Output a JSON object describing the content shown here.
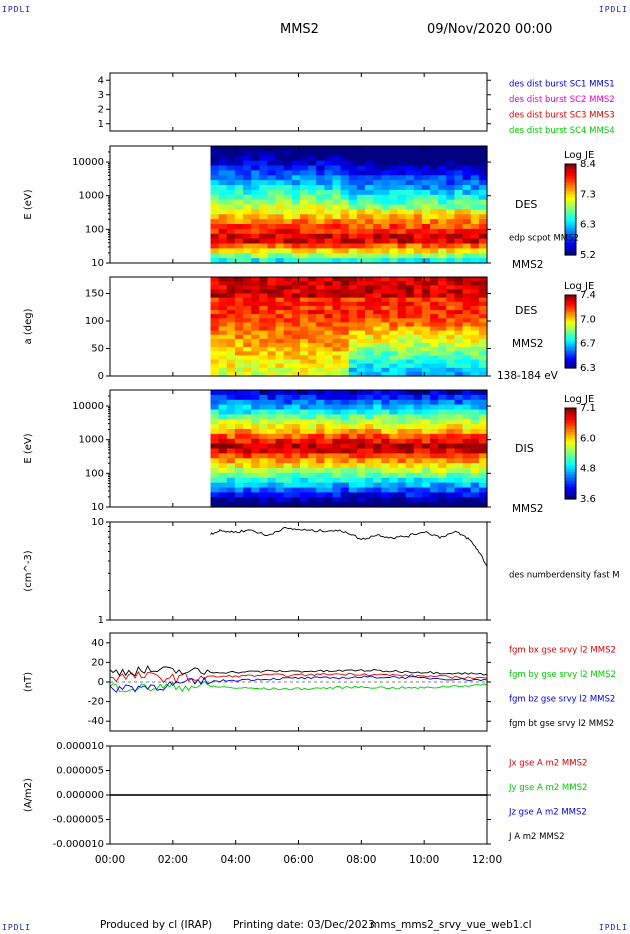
{
  "corner_tag": "IPDLI",
  "header": {
    "spacecraft": "MMS2",
    "datetime": "09/Nov/2020 00:00"
  },
  "footer": {
    "produced_by": "Produced by cl (IRAP)",
    "printing_date": "Printing date: 03/Dec/2023",
    "file_name": "mms_mms2_srvy_vue_web1.cl"
  },
  "colors": {
    "black": "#000000",
    "red": "#e00000",
    "green": "#00cc00",
    "blue": "#0000dd",
    "magenta": "#e000e0"
  },
  "chart_data": [
    {
      "id": "burst",
      "type": "line",
      "ylim": [
        0.5,
        4.5
      ],
      "yticks": [
        1,
        2,
        3,
        4
      ],
      "yscale": "linear",
      "legend": [
        {
          "label": "des dist burst SC1 MMS1",
          "color": "#0000dd"
        },
        {
          "label": "des dist burst SC2 MMS2",
          "color": "#e000e0"
        },
        {
          "label": "des dist burst SC3 MMS3",
          "color": "#e00000"
        },
        {
          "label": "des dist burst SC4 MMS4",
          "color": "#00cc00"
        }
      ]
    },
    {
      "id": "des-energy",
      "type": "heatmap",
      "ylabel": "E (eV)",
      "yscale": "log",
      "ylim": [
        10,
        30000
      ],
      "yticks": [
        10,
        100,
        1000,
        10000
      ],
      "yticklabels": [
        "10",
        "100",
        "1000",
        "10000"
      ],
      "data_start_hour": 3.2,
      "peak_energy_eV": 50,
      "labels": [
        "DES",
        "edp scpot MMS2",
        "MMS2"
      ],
      "colorbar": {
        "title": "Log JE",
        "ticks": [
          "8.4",
          "7.3",
          "6.3",
          "5.2"
        ],
        "range": [
          5.2,
          8.4
        ]
      }
    },
    {
      "id": "des-pitch",
      "type": "heatmap",
      "ylabel": "a (deg)",
      "yscale": "linear",
      "ylim": [
        0,
        180
      ],
      "yticks": [
        0,
        50,
        100,
        150
      ],
      "yticklabels": [
        "0",
        "50",
        "100",
        "150"
      ],
      "data_start_hour": 3.2,
      "labels": [
        "DES",
        "MMS2",
        "138-184 eV"
      ],
      "colorbar": {
        "title": "Log JE",
        "ticks": [
          "7.4",
          "7.0",
          "6.7",
          "6.3"
        ],
        "range": [
          6.3,
          7.4
        ]
      }
    },
    {
      "id": "dis-energy",
      "type": "heatmap",
      "ylabel": "E (eV)",
      "yscale": "log",
      "ylim": [
        10,
        30000
      ],
      "yticks": [
        10,
        100,
        1000,
        10000
      ],
      "yticklabels": [
        "10",
        "100",
        "1000",
        "10000"
      ],
      "data_start_hour": 3.2,
      "peak_energy_eV": 600,
      "labels": [
        "DIS",
        "MMS2"
      ],
      "colorbar": {
        "title": "Log JE",
        "ticks": [
          "7.1",
          "6.0",
          "4.8",
          "3.6"
        ],
        "range": [
          3.6,
          7.1
        ]
      }
    },
    {
      "id": "density",
      "type": "line",
      "ylabel": "(cm^-3)",
      "yscale": "log",
      "ylim": [
        1,
        10
      ],
      "yticks": [
        1,
        10
      ],
      "yticklabels": [
        "1",
        "10"
      ],
      "series": [
        {
          "name": "des numberdensity fast M",
          "color": "#000000",
          "x": [
            3.2,
            3.5,
            4.0,
            4.5,
            5.0,
            5.5,
            6.0,
            6.5,
            7.0,
            7.5,
            8.0,
            8.5,
            9.0,
            9.5,
            10.0,
            10.5,
            11.0,
            11.4,
            11.7,
            12.0
          ],
          "values": [
            7.6,
            8.1,
            7.9,
            8.3,
            7.2,
            8.6,
            8.4,
            8.1,
            8.2,
            8.0,
            6.6,
            7.4,
            6.9,
            7.2,
            8.0,
            7.0,
            7.9,
            6.8,
            5.2,
            3.5
          ]
        }
      ]
    },
    {
      "id": "bfield",
      "type": "line",
      "ylabel": "(nT)",
      "yscale": "linear",
      "ylim": [
        -50,
        50
      ],
      "yticks": [
        -40,
        -20,
        0,
        20,
        40
      ],
      "yticklabels": [
        "-40",
        "-20",
        "0",
        "20",
        "40"
      ],
      "x": [
        0,
        1,
        2,
        3,
        4,
        5,
        6,
        7,
        8,
        9,
        10,
        11,
        12
      ],
      "series": [
        {
          "name": "fgm bx gse srvy l2 MMS2",
          "color": "#e00000",
          "values": [
            5,
            6,
            4,
            5,
            6,
            7,
            7,
            8,
            8,
            7,
            6,
            5,
            4
          ]
        },
        {
          "name": "fgm by gse srvy l2 MMS2",
          "color": "#00cc00",
          "values": [
            -5,
            -6,
            -5,
            -4,
            -6,
            -7,
            -7,
            -6,
            -5,
            -6,
            -6,
            -4,
            -3
          ]
        },
        {
          "name": "fgm bz gse srvy l2 MMS2",
          "color": "#0000dd",
          "values": [
            -6,
            -5,
            -3,
            0,
            2,
            3,
            4,
            4,
            5,
            5,
            4,
            3,
            2
          ]
        },
        {
          "name": "fgm bt gse srvy l2 MMS2",
          "color": "#000000",
          "values": [
            10,
            12,
            11,
            10,
            10,
            11,
            11,
            11,
            12,
            11,
            10,
            9,
            8
          ]
        }
      ]
    },
    {
      "id": "current",
      "type": "line",
      "ylabel": "(A/m2)",
      "yscale": "linear",
      "ylim": [
        -1e-05,
        1e-05
      ],
      "yticks": [
        -1e-05,
        -5e-06,
        0,
        5e-06,
        1e-05
      ],
      "yticklabels": [
        "-0.000010",
        "-0.000005",
        "0.000000",
        "0.000005",
        "0.000010"
      ],
      "x": [
        0,
        12
      ],
      "series": [
        {
          "name": "Jx gse A m2 MMS2",
          "color": "#e00000",
          "values": [
            0,
            0
          ]
        },
        {
          "name": "Jy gse A m2 MMS2",
          "color": "#00cc00",
          "values": [
            0,
            0
          ]
        },
        {
          "name": "Jz gse A m2 MMS2",
          "color": "#0000dd",
          "values": [
            0,
            0
          ]
        },
        {
          "name": "J A m2 MMS2",
          "color": "#000000",
          "values": [
            0,
            0
          ]
        }
      ]
    }
  ],
  "xaxis": {
    "xlim": [
      0,
      12
    ],
    "ticks": [
      0,
      2,
      4,
      6,
      8,
      10,
      12
    ],
    "ticklabels": [
      "00:00",
      "02:00",
      "04:00",
      "06:00",
      "08:00",
      "10:00",
      "12:00"
    ]
  }
}
